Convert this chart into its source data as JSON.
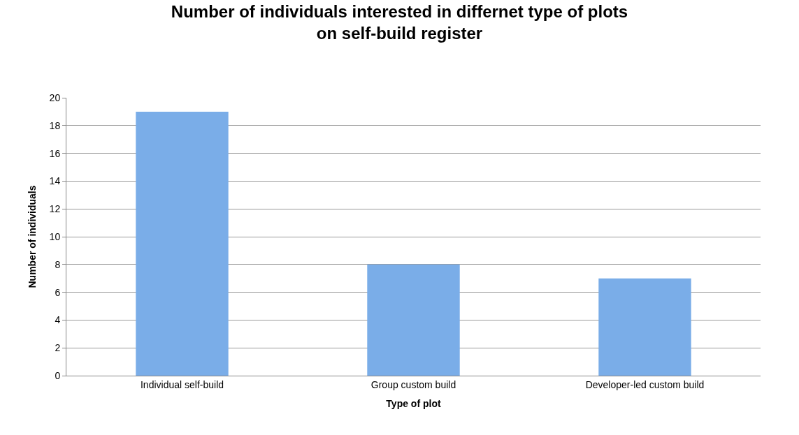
{
  "chart_data": {
    "type": "bar",
    "title": "Number of individuals interested in differnet type of plots\non self-build register",
    "xlabel": "Type of plot",
    "ylabel": "Number of individuals",
    "categories": [
      "Individual self-build",
      "Group custom build",
      "Developer-led custom build"
    ],
    "values": [
      19,
      8,
      7
    ],
    "color": "#7aade8",
    "ylim": [
      0,
      20
    ],
    "yticks": [
      0,
      2,
      4,
      6,
      8,
      10,
      12,
      14,
      16,
      18,
      20
    ],
    "grid": "y"
  }
}
